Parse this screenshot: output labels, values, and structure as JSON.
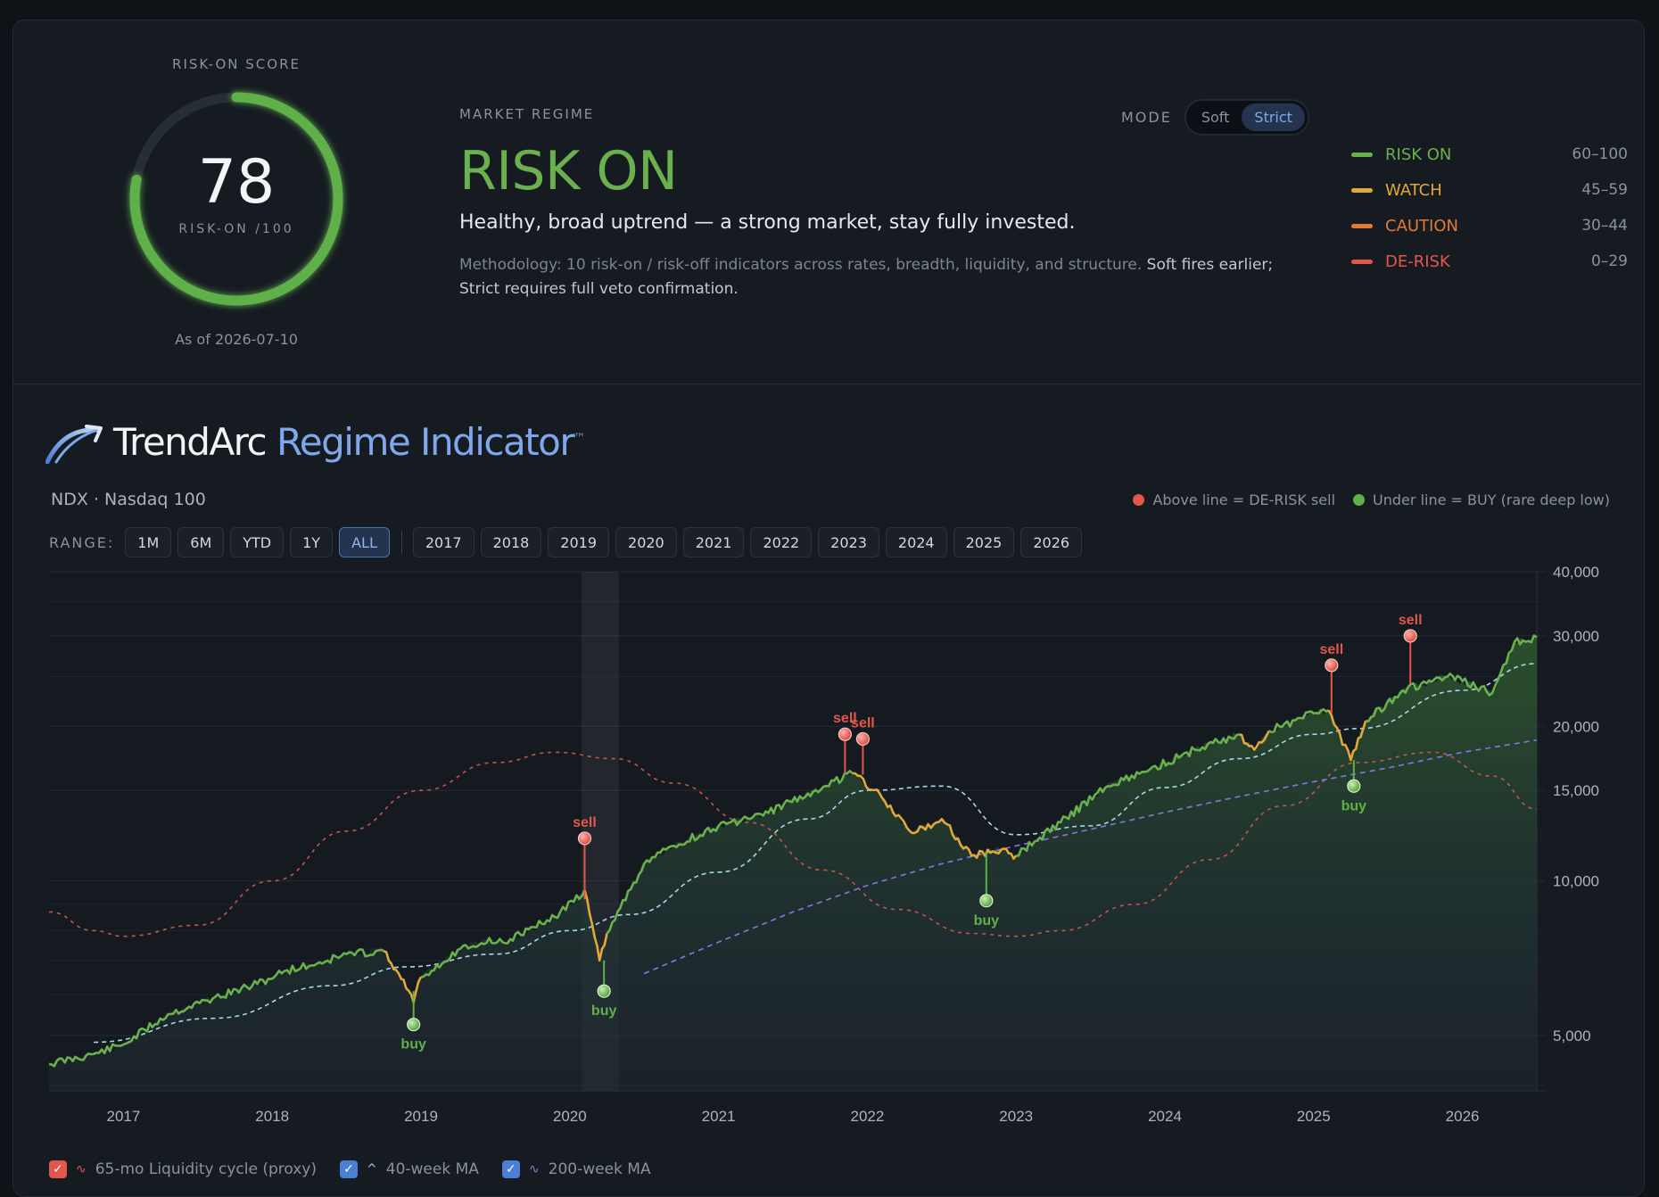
{
  "gauge": {
    "label": "RISK-ON SCORE",
    "score": "78",
    "score_fraction": 0.78,
    "sub": "RISK-ON /100",
    "as_of": "As of 2026-07-10",
    "color": "#5fb04a"
  },
  "regime": {
    "label": "MARKET REGIME",
    "value": "RISK ON",
    "description": "Healthy, broad uptrend — a strong market, stay fully invested.",
    "method_plain": "Methodology: 10 risk-on / risk-off indicators across rates, breadth, liquidity, and structure. ",
    "method_highlight": "Soft fires earlier; Strict requires full veto confirmation."
  },
  "mode": {
    "label": "MODE",
    "options": [
      "Soft",
      "Strict"
    ],
    "selected": "Strict"
  },
  "scale": [
    {
      "name": "RISK ON",
      "range": "60–100",
      "color": "#6ab04c"
    },
    {
      "name": "WATCH",
      "range": "45–59",
      "color": "#e0a838"
    },
    {
      "name": "CAUTION",
      "range": "30–44",
      "color": "#e07b35"
    },
    {
      "name": "DE-RISK",
      "range": "0–29",
      "color": "#e2574c"
    }
  ],
  "brand": {
    "name": "TrendArc",
    "product": "Regime Indicator",
    "tm": "™",
    "subtitle": "NDX · Nasdaq 100"
  },
  "signal_legend": {
    "sell": "Above line = DE-RISK sell",
    "buy": "Under line = BUY (rare deep low)"
  },
  "range": {
    "label": "RANGE:",
    "quick": [
      "1M",
      "6M",
      "YTD",
      "1Y",
      "ALL"
    ],
    "selected": "ALL",
    "years": [
      "2017",
      "2018",
      "2019",
      "2020",
      "2021",
      "2022",
      "2023",
      "2024",
      "2025",
      "2026"
    ]
  },
  "overlays": [
    {
      "label": "65-mo Liquidity cycle (proxy)",
      "checked": true,
      "color": "#e2574c",
      "glyph": "∿"
    },
    {
      "label": "40-week MA",
      "checked": true,
      "color": "#4a7fd4",
      "glyph": "^"
    },
    {
      "label": "200-week MA",
      "checked": true,
      "color": "#4a7fd4",
      "glyph": "∿"
    }
  ],
  "chart_data": {
    "type": "line",
    "scale": "log",
    "ylim": [
      3900,
      40000
    ],
    "xlim": [
      2016.5,
      2026.5
    ],
    "y_ticks": [
      5000,
      10000,
      15000,
      20000,
      30000,
      40000
    ],
    "y_tick_labels": [
      "5,000",
      "10,000",
      "15,000",
      "20,000",
      "30,000",
      "40,000"
    ],
    "x_ticks": [
      2017,
      2018,
      2019,
      2020,
      2021,
      2022,
      2023,
      2024,
      2025,
      2026
    ],
    "x_tick_labels": [
      "2017",
      "2018",
      "2019",
      "2020",
      "2021",
      "2022",
      "2023",
      "2024",
      "2025",
      "2026"
    ],
    "shaded_region": [
      2020.08,
      2020.33
    ],
    "price_segments": [
      {
        "state": "on",
        "x": [
          2016.5,
          2016.8,
          2017.0,
          2017.3,
          2017.6,
          2017.9,
          2018.1,
          2018.3,
          2018.5,
          2018.75
        ],
        "y": [
          4400,
          4600,
          4800,
          5500,
          5900,
          6300,
          6700,
          6900,
          7200,
          7300
        ]
      },
      {
        "state": "watch",
        "x": [
          2018.75,
          2018.85,
          2018.95,
          2019.0
        ],
        "y": [
          7300,
          6600,
          5800,
          6500
        ]
      },
      {
        "state": "on",
        "x": [
          2019.0,
          2019.3,
          2019.6,
          2019.9,
          2020.1
        ],
        "y": [
          6500,
          7500,
          7700,
          8500,
          9600
        ]
      },
      {
        "state": "watch",
        "x": [
          2020.1,
          2020.2,
          2020.25
        ],
        "y": [
          9600,
          7000,
          7900
        ]
      },
      {
        "state": "on",
        "x": [
          2020.25,
          2020.5,
          2020.7,
          2021.0,
          2021.3,
          2021.6,
          2021.9
        ],
        "y": [
          7900,
          10800,
          11700,
          12800,
          13400,
          14800,
          16200
        ]
      },
      {
        "state": "watch",
        "x": [
          2021.9,
          2022.1,
          2022.3,
          2022.5,
          2022.7,
          2022.9,
          2023.0
        ],
        "y": [
          16200,
          14500,
          12400,
          13200,
          11200,
          11500,
          11200
        ]
      },
      {
        "state": "on",
        "x": [
          2023.0,
          2023.3,
          2023.6,
          2023.9,
          2024.2,
          2024.5
        ],
        "y": [
          11200,
          13000,
          15200,
          16500,
          18000,
          19300
        ]
      },
      {
        "state": "watch",
        "x": [
          2024.5,
          2024.6,
          2024.7
        ],
        "y": [
          19300,
          18000,
          19600
        ]
      },
      {
        "state": "on",
        "x": [
          2024.7,
          2025.0,
          2025.1
        ],
        "y": [
          19600,
          21200,
          21500
        ]
      },
      {
        "state": "watch",
        "x": [
          2025.1,
          2025.25,
          2025.35
        ],
        "y": [
          21500,
          17200,
          20500
        ]
      },
      {
        "state": "on",
        "x": [
          2025.35,
          2025.6,
          2025.9,
          2026.0,
          2026.2,
          2026.35,
          2026.5
        ],
        "y": [
          20500,
          23500,
          25000,
          24500,
          23200,
          29200,
          29800
        ]
      }
    ],
    "ma40w": {
      "x": [
        2016.8,
        2017.6,
        2018.4,
        2018.9,
        2019.5,
        2020.0,
        2020.4,
        2021.0,
        2021.6,
        2022.0,
        2022.5,
        2023.0,
        2023.5,
        2024.0,
        2024.5,
        2025.0,
        2025.3,
        2026.0,
        2026.5
      ],
      "y": [
        4850,
        5400,
        6250,
        6800,
        7200,
        8000,
        8600,
        10400,
        13200,
        15000,
        15300,
        12300,
        12800,
        15200,
        17300,
        19300,
        19800,
        23500,
        26500
      ]
    },
    "ma200w": {
      "x": [
        2020.5,
        2021.0,
        2021.5,
        2022.0,
        2022.5,
        2023.0,
        2023.5,
        2024.0,
        2024.5,
        2025.0,
        2025.5,
        2026.0,
        2026.5
      ],
      "y": [
        6600,
        7600,
        8700,
        9800,
        10800,
        11700,
        12600,
        13600,
        14600,
        15600,
        16600,
        17800,
        18800
      ]
    },
    "liquidity_cycle": {
      "x": [
        2016.5,
        2016.8,
        2017.0,
        2017.5,
        2018.0,
        2018.5,
        2019.0,
        2019.5,
        2019.9,
        2020.3,
        2020.7,
        2021.2,
        2021.7,
        2022.2,
        2022.7,
        2023.0,
        2023.3,
        2023.8,
        2024.3,
        2024.8,
        2025.3,
        2025.8,
        2026.2,
        2026.5
      ],
      "y": [
        8700,
        8000,
        7800,
        8200,
        10000,
        12500,
        15000,
        17000,
        17800,
        17300,
        15500,
        13000,
        10500,
        8800,
        7900,
        7800,
        8000,
        9000,
        11000,
        14000,
        17000,
        17800,
        16000,
        13800
      ]
    },
    "signals": [
      {
        "type": "sell",
        "label": "sell",
        "x": 2020.1,
        "y": 12100,
        "base": 9200
      },
      {
        "type": "sell",
        "label": "sell",
        "x": 2021.85,
        "y": 19300,
        "base": 16200
      },
      {
        "type": "sell",
        "label": "sell",
        "x": 2021.97,
        "y": 18900,
        "base": 16100
      },
      {
        "type": "sell",
        "label": "sell",
        "x": 2025.12,
        "y": 26300,
        "base": 21200
      },
      {
        "type": "sell",
        "label": "sell",
        "x": 2025.65,
        "y": 30000,
        "base": 24200
      },
      {
        "type": "buy",
        "label": "buy",
        "x": 2018.95,
        "y": 5250,
        "base": 6100
      },
      {
        "type": "buy",
        "label": "buy",
        "x": 2020.23,
        "y": 6100,
        "base": 7000
      },
      {
        "type": "buy",
        "label": "buy",
        "x": 2022.8,
        "y": 9150,
        "base": 11400
      },
      {
        "type": "buy",
        "label": "buy",
        "x": 2025.27,
        "y": 15300,
        "base": 17200
      }
    ]
  }
}
